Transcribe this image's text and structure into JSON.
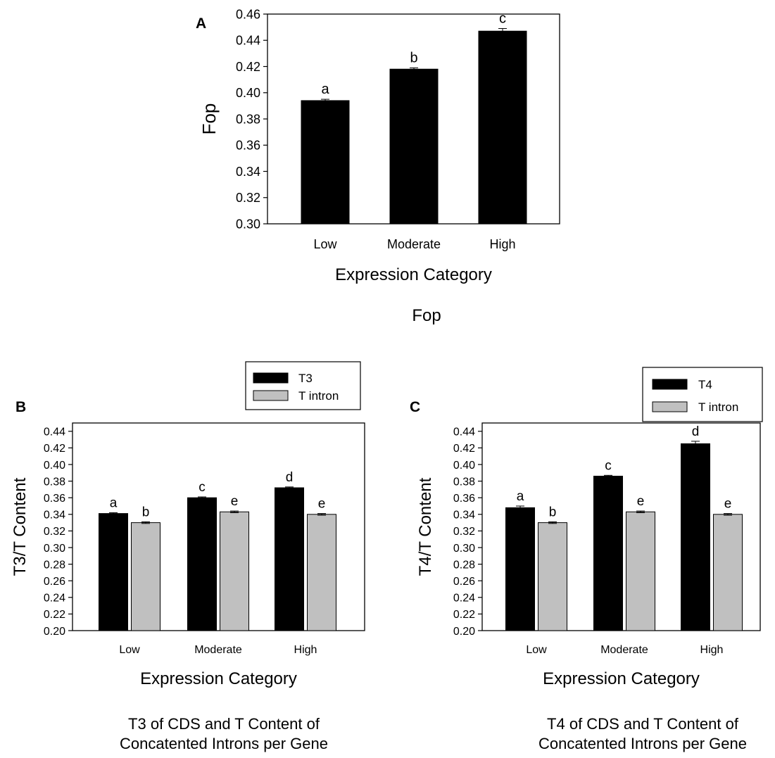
{
  "chart_data": [
    {
      "panel_label": "A",
      "type": "bar",
      "categories": [
        "Low",
        "Moderate",
        "High"
      ],
      "series": [
        {
          "values": [
            0.394,
            0.418,
            0.447
          ],
          "errors": [
            0.001,
            0.001,
            0.002
          ],
          "letters": [
            "a",
            "b",
            "c"
          ],
          "color": "#000000"
        }
      ],
      "ylabel": "Fop",
      "xlabel": "Expression Category",
      "caption": [
        "Fop"
      ],
      "ylim": [
        0.3,
        0.46
      ],
      "yticks": [
        "0.30",
        "0.32",
        "0.34",
        "0.36",
        "0.38",
        "0.40",
        "0.42",
        "0.44",
        "0.46"
      ],
      "grid": false
    },
    {
      "panel_label": "B",
      "type": "bar",
      "categories": [
        "Low",
        "Moderate",
        "High"
      ],
      "series": [
        {
          "name": "T3",
          "values": [
            0.341,
            0.36,
            0.372
          ],
          "errors": [
            0.001,
            0.001,
            0.001
          ],
          "letters": [
            "a",
            "c",
            "d"
          ],
          "color": "#000000"
        },
        {
          "name": "T intron",
          "values": [
            0.33,
            0.343,
            0.34
          ],
          "errors": [
            0.001,
            0.001,
            0.001
          ],
          "letters": [
            "b",
            "e",
            "e"
          ],
          "color": "#c0c0c0"
        }
      ],
      "ylabel": "T3/T Content",
      "xlabel": "Expression Category",
      "caption": [
        "T3 of CDS and T Content of",
        "Concatented Introns per Gene"
      ],
      "ylim": [
        0.2,
        0.45
      ],
      "yticks": [
        "0.20",
        "0.22",
        "0.24",
        "0.26",
        "0.28",
        "0.30",
        "0.32",
        "0.34",
        "0.36",
        "0.38",
        "0.40",
        "0.42",
        "0.44"
      ],
      "legend_position": "top-right, outside plot",
      "grid": false
    },
    {
      "panel_label": "C",
      "type": "bar",
      "categories": [
        "Low",
        "Moderate",
        "High"
      ],
      "series": [
        {
          "name": "T4",
          "values": [
            0.348,
            0.386,
            0.425
          ],
          "errors": [
            0.002,
            0.001,
            0.003
          ],
          "letters": [
            "a",
            "c",
            "d"
          ],
          "color": "#000000"
        },
        {
          "name": "T intron",
          "values": [
            0.33,
            0.343,
            0.34
          ],
          "errors": [
            0.001,
            0.001,
            0.001
          ],
          "letters": [
            "b",
            "e",
            "e"
          ],
          "color": "#c0c0c0"
        }
      ],
      "ylabel": "T4/T Content",
      "xlabel": "Expression Category",
      "caption": [
        "T4 of CDS and T Content of",
        "Concatented Introns per Gene"
      ],
      "ylim": [
        0.2,
        0.45
      ],
      "yticks": [
        "0.20",
        "0.22",
        "0.24",
        "0.26",
        "0.28",
        "0.30",
        "0.32",
        "0.34",
        "0.36",
        "0.38",
        "0.40",
        "0.42",
        "0.44"
      ],
      "legend_position": "top-right, outside plot",
      "grid": false
    }
  ]
}
